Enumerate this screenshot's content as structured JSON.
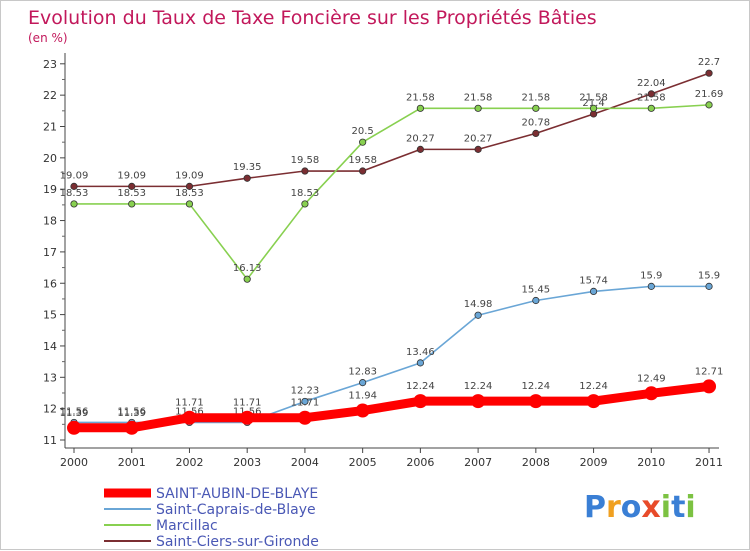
{
  "chart_data": {
    "type": "line",
    "title": "Evolution du Taux de Taxe Foncière sur les Propriétés Bâties",
    "unit_label": "(en %)",
    "x": [
      "2000",
      "2001",
      "2002",
      "2003",
      "2004",
      "2005",
      "2006",
      "2007",
      "2008",
      "2009",
      "2010",
      "2011"
    ],
    "ylim": [
      10.9,
      23.2
    ],
    "yticks": [
      "11",
      "12",
      "13",
      "14",
      "15",
      "16",
      "17",
      "18",
      "19",
      "20",
      "21",
      "22",
      "23"
    ],
    "grid": false,
    "legend_position": "bottom-left",
    "series": [
      {
        "name": "SAINT-AUBIN-DE-BLAYE",
        "color": "#ff0000",
        "values": [
          11.39,
          11.39,
          11.71,
          11.71,
          11.71,
          11.94,
          12.24,
          12.24,
          12.24,
          12.24,
          12.49,
          12.71
        ],
        "labels": [
          "11.39",
          "11.39",
          "11.71",
          "11.71",
          "11.71",
          "11.94",
          "12.24",
          "12.24",
          "12.24",
          "12.24",
          "12.49",
          "12.71"
        ]
      },
      {
        "name": "Saint-Caprais-de-Blaye",
        "color": "#6aa6d6",
        "values": [
          11.56,
          11.56,
          11.56,
          11.56,
          12.23,
          12.83,
          13.46,
          14.98,
          15.45,
          15.74,
          15.9,
          15.9
        ],
        "labels": [
          "11.56",
          "11.56",
          "11.56",
          "11.56",
          "12.23",
          "12.83",
          "13.46",
          "14.98",
          "15.45",
          "15.74",
          "15.9",
          "15.9"
        ]
      },
      {
        "name": "Marcillac",
        "color": "#88d050",
        "values": [
          18.53,
          18.53,
          18.53,
          16.13,
          18.53,
          20.5,
          21.58,
          21.58,
          21.58,
          21.58,
          21.58,
          21.69
        ],
        "labels": [
          "18.53",
          "18.53",
          "18.53",
          "16.13",
          "18.53",
          "20.5",
          "21.58",
          "21.58",
          "21.58",
          "21.58",
          "21.58",
          "21.69"
        ]
      },
      {
        "name": "Saint-Ciers-sur-Gironde",
        "color": "#7b2e32",
        "values": [
          19.09,
          19.09,
          19.09,
          19.35,
          19.58,
          19.58,
          20.27,
          20.27,
          20.78,
          21.4,
          22.04,
          22.7
        ],
        "labels": [
          "19.09",
          "19.09",
          "19.09",
          "19.35",
          "19.58",
          "19.58",
          "20.27",
          "20.27",
          "20.78",
          "21.4",
          "22.04",
          "22.7"
        ]
      }
    ]
  },
  "branding": {
    "logo_letters": [
      "P",
      "r",
      "o",
      "x",
      "i",
      "t",
      "i"
    ],
    "logo_colors": [
      "#3a7fd5",
      "#f0a020",
      "#3a7fd5",
      "#e84b2a",
      "#7cc242",
      "#3a7fd5",
      "#7cc242"
    ]
  }
}
